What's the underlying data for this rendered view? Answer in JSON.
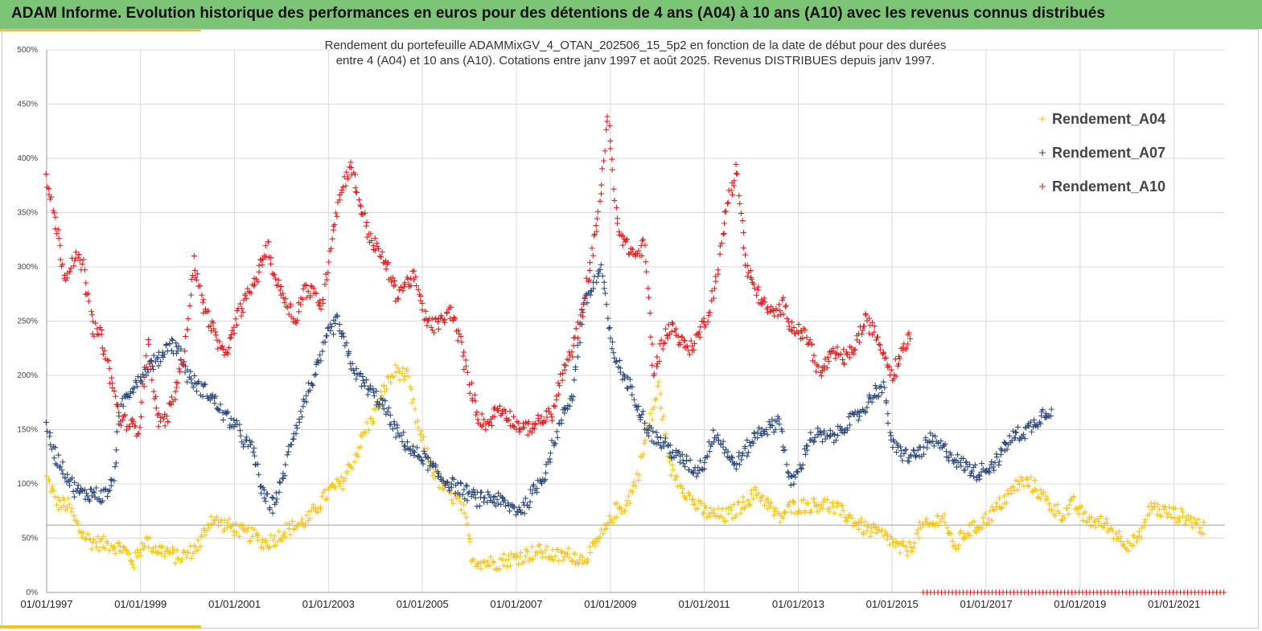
{
  "banner": {
    "title": "ADAM Informe. Evolution historique des performances en euros pour des détentions de 4 ans (A04) à 10 ans (A10) avec les revenus connus distribués",
    "background": "#7dc576",
    "accent": "#f2c21a"
  },
  "chart_data": {
    "type": "scatter",
    "title_lines": [
      "Rendement du portefeuille ADAMMixGV_4_OTAN_202506_15_5p2  en fonction de la date de début pour des durées",
      "entre 4 (A04) et 10 ans (A10). Cotations entre janv 1997 et août 2025. Revenus DISTRIBUES depuis janv 1997."
    ],
    "marker": "+",
    "xlim": [
      "1997-01-01",
      "2022-02-01"
    ],
    "ylim": [
      0,
      500
    ],
    "y_unit": "%",
    "y_ticks": [
      "0%",
      "50%",
      "100%",
      "150%",
      "200%",
      "250%",
      "300%",
      "350%",
      "400%",
      "450%",
      "500%"
    ],
    "x_ticks": [
      "01/01/1997",
      "01/01/1999",
      "01/01/2001",
      "01/01/2003",
      "01/01/2005",
      "01/01/2007",
      "01/01/2009",
      "01/01/2011",
      "01/01/2013",
      "01/01/2015",
      "01/01/2017",
      "01/01/2019",
      "01/01/2021"
    ],
    "grid": true,
    "legend_position": "top-right",
    "reference_line_y": 62,
    "series": [
      {
        "name": "Rendement_A04",
        "color": "#f5c518",
        "x_start": "1997-01-01",
        "x_end": "2021-09-01",
        "values": [
          105,
          82,
          80,
          58,
          47,
          45,
          44,
          40,
          28,
          48,
          40,
          38,
          32,
          36,
          45,
          68,
          63,
          60,
          55,
          52,
          45,
          50,
          58,
          62,
          68,
          82,
          95,
          100,
          120,
          145,
          165,
          190,
          205,
          198,
          150,
          120,
          100,
          90,
          80,
          30,
          28,
          27,
          30,
          32,
          35,
          38,
          35,
          33,
          35,
          30,
          40,
          55,
          75,
          80,
          105,
          150,
          190,
          115,
          100,
          85,
          75,
          72,
          70,
          75,
          85,
          92,
          82,
          68,
          78,
          80,
          80,
          82,
          78,
          72,
          65,
          58,
          55,
          50,
          40,
          40,
          60,
          62,
          72,
          40,
          55,
          60,
          68,
          78,
          90,
          102,
          100,
          90,
          78,
          72,
          82,
          68,
          65,
          62,
          52,
          45,
          50,
          80,
          75,
          72,
          70,
          65,
          57
        ]
      },
      {
        "name": "Rendement_A07",
        "color": "#2e4a7d",
        "x_start": "1997-01-01",
        "x_end": "2018-06-01",
        "values": [
          150,
          125,
          110,
          95,
          90,
          92,
          88,
          100,
          175,
          188,
          200,
          210,
          215,
          230,
          225,
          200,
          190,
          185,
          175,
          162,
          155,
          140,
          130,
          90,
          80,
          100,
          140,
          165,
          190,
          210,
          240,
          250,
          220,
          200,
          190,
          180,
          170,
          150,
          140,
          128,
          125,
          115,
          105,
          100,
          95,
          90,
          85,
          88,
          85,
          80,
          76,
          80,
          95,
          110,
          140,
          165,
          185,
          260,
          280,
          300,
          230,
          205,
          190,
          170,
          150,
          140,
          135,
          125,
          120,
          112,
          120,
          148,
          135,
          118,
          125,
          140,
          150,
          152,
          160,
          100,
          110,
          140,
          145,
          142,
          145,
          155,
          160,
          170,
          185,
          188,
          135,
          128,
          125,
          130,
          140,
          135,
          128,
          120,
          115,
          110,
          115,
          120,
          135,
          145,
          148,
          155,
          165,
          170
        ]
      },
      {
        "name": "Rendement_A10",
        "color": "#e02020",
        "x_start": "1997-01-01",
        "x_end": "2015-06-01",
        "values": [
          380,
          340,
          290,
          310,
          300,
          245,
          235,
          195,
          160,
          155,
          150,
          230,
          160,
          158,
          185,
          220,
          305,
          265,
          245,
          220,
          230,
          260,
          275,
          295,
          320,
          285,
          270,
          250,
          280,
          275,
          265,
          330,
          370,
          395,
          360,
          330,
          315,
          300,
          275,
          285,
          290,
          255,
          245,
          250,
          260,
          230,
          190,
          160,
          155,
          170,
          165,
          155,
          150,
          155,
          160,
          165,
          200,
          220,
          250,
          300,
          350,
          440,
          340,
          320,
          310,
          320,
          200,
          235,
          245,
          230,
          225,
          240,
          260,
          300,
          360,
          390,
          300,
          280,
          265,
          255,
          265,
          245,
          240,
          230,
          200,
          215,
          220,
          215,
          230,
          250,
          240,
          220,
          200,
          225,
          240
        ]
      }
    ],
    "flat_segment": {
      "color": "#e02020",
      "x_start": "2015-09-01",
      "x_end": "2022-02-01",
      "value": 0
    }
  }
}
